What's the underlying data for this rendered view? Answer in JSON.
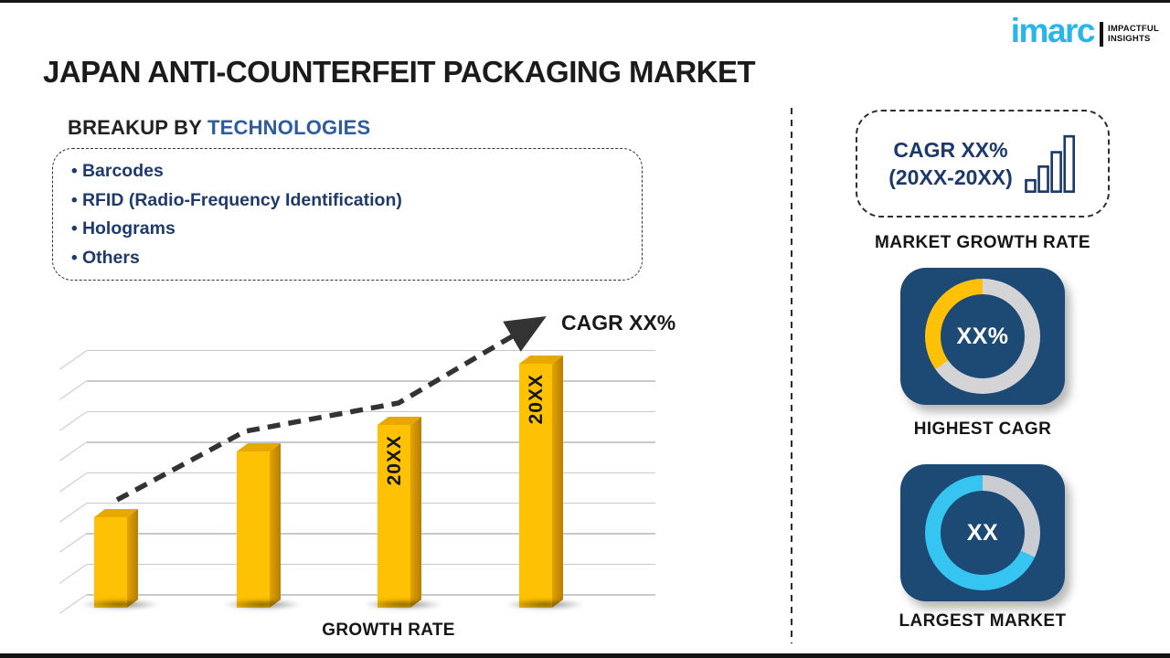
{
  "page_title": "JAPAN ANTI-COUNTERFEIT PACKAGING MARKET",
  "logo": {
    "brand": "imarc",
    "tagline1": "IMPACTFUL",
    "tagline2": "INSIGHTS",
    "brand_color": "#29B5E8"
  },
  "breakup": {
    "heading_prefix": "BREAKUP BY ",
    "heading_highlight": "TECHNOLOGIES",
    "items": [
      "Barcodes",
      "RFID (Radio-Frequency Identification)",
      "Holograms",
      "Others"
    ]
  },
  "chart_data": {
    "type": "bar",
    "title": "",
    "xlabel": "GROWTH RATE",
    "ylabel": "",
    "categories": [
      "",
      "",
      "20XX",
      "20XX"
    ],
    "values": [
      0.37,
      0.64,
      0.75,
      1.0
    ],
    "values_note": "relative bar heights; placeholder template chart with no numeric axis",
    "trend_label": "CAGR XX%",
    "trend": "rising dashed arrow",
    "grid": true,
    "gridlines": 9,
    "bar_color": "#FFC103",
    "bar_side_color": "#B77E02",
    "bar_top_color": "#E8A803",
    "trend_color": "#333333"
  },
  "growth_box": {
    "line1": "CAGR XX%",
    "line2": "(20XX-20XX)",
    "caption": "MARKET GROWTH RATE",
    "icon_color": "#1B3A6B"
  },
  "highest_cagr": {
    "value": "XX%",
    "caption": "HIGHEST CAGR",
    "tile_color": "#1D4A74",
    "ring_color": "#D4D4D6",
    "segment_color": "#FFC107",
    "segment_start_deg": 235,
    "segment_end_deg": 360
  },
  "largest_market": {
    "value": "XX",
    "caption": "LARGEST MARKET",
    "tile_color": "#1D4A74",
    "ring_color": "#35C5F0",
    "segment_color": "#C9CDD2",
    "segment_start_deg": 0,
    "segment_end_deg": 115
  },
  "colors": {
    "navy_text": "#1E3A6D",
    "heading_blue": "#2D5B9E",
    "tile_navy": "#1D4A74",
    "accent_yellow": "#FFC103",
    "accent_cyan": "#35C5F0",
    "brand_blue": "#29B5E8"
  }
}
